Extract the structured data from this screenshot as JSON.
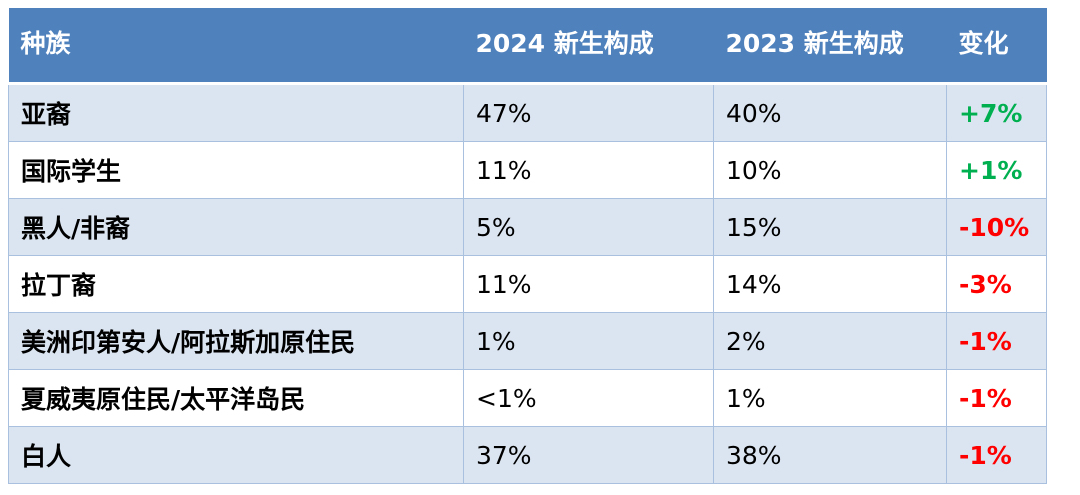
{
  "table": {
    "headers": [
      "种族",
      "2024  新生构成",
      "2023  新生构成",
      "变化"
    ],
    "rows": [
      {
        "group": "亚裔",
        "y2024": "47%",
        "y2023": "40%",
        "change": "+7%"
      },
      {
        "group": "国际学生",
        "y2024": "11%",
        "y2023": "10%",
        "change": "+1%"
      },
      {
        "group": "黑人/非裔",
        "y2024": "5%",
        "y2023": "15%",
        "change": "-10%"
      },
      {
        "group": "拉丁裔",
        "y2024": "11%",
        "y2023": "14%",
        "change": "-3%"
      },
      {
        "group": "美洲印第安人/阿拉斯加原住民",
        "y2024": "1%",
        "y2023": "2%",
        "change": "-1%"
      },
      {
        "group": "夏威夷原住民/太平洋岛民",
        "y2024": "<1%",
        "y2023": "1%",
        "change": "-1%"
      },
      {
        "group": "白人",
        "y2024": "37%",
        "y2023": "38%",
        "change": "-1%"
      }
    ]
  },
  "colors": {
    "header_bg": "#4f81bd",
    "band_row": "#dbe5f1",
    "positive": "#00b050",
    "negative": "#ff0000"
  }
}
